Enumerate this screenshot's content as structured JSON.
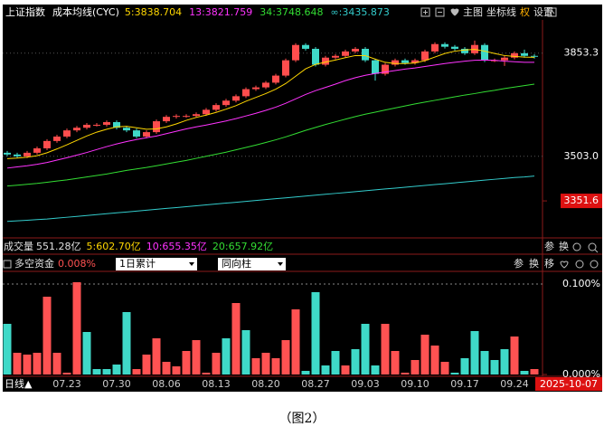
{
  "chart_data": [
    {
      "type": "candlestick",
      "title": "上证指数",
      "subtitle": "成本均线(CYC)",
      "open": [
        3515,
        3509,
        3503,
        3515,
        3530,
        3555,
        3570,
        3591,
        3600,
        3610,
        3610,
        3619,
        3600,
        3591,
        3570,
        3585,
        3622,
        3637,
        3640,
        3640,
        3646,
        3661,
        3677,
        3692,
        3707,
        3731,
        3737,
        3753,
        3777,
        3829,
        3881,
        3868,
        3814,
        3838,
        3844,
        3859,
        3868,
        3829,
        3783,
        3814,
        3829,
        3820,
        3829,
        3859,
        3884,
        3875,
        3868,
        3853,
        3881,
        3829,
        3829,
        3838,
        3853,
        3844
      ],
      "high": [
        3521,
        3515,
        3521,
        3536,
        3561,
        3576,
        3597,
        3606,
        3616,
        3616,
        3625,
        3625,
        3606,
        3597,
        3591,
        3628,
        3643,
        3646,
        3646,
        3652,
        3667,
        3683,
        3698,
        3713,
        3737,
        3743,
        3759,
        3783,
        3835,
        3887,
        3887,
        3874,
        3844,
        3850,
        3865,
        3874,
        3874,
        3835,
        3820,
        3835,
        3835,
        3835,
        3865,
        3890,
        3890,
        3881,
        3874,
        3896,
        3887,
        3835,
        3844,
        3859,
        3865,
        3850
      ],
      "low": [
        3503,
        3497,
        3497,
        3509,
        3524,
        3549,
        3564,
        3585,
        3594,
        3604,
        3604,
        3594,
        3585,
        3564,
        3564,
        3579,
        3616,
        3631,
        3634,
        3634,
        3640,
        3655,
        3671,
        3686,
        3701,
        3725,
        3731,
        3747,
        3771,
        3823,
        3862,
        3808,
        3808,
        3832,
        3838,
        3853,
        3823,
        3760,
        3777,
        3808,
        3814,
        3814,
        3823,
        3853,
        3869,
        3862,
        3847,
        3847,
        3823,
        3823,
        3810,
        3832,
        3838,
        3835
      ],
      "close": [
        3509,
        3503,
        3515,
        3530,
        3555,
        3570,
        3591,
        3600,
        3610,
        3610,
        3619,
        3600,
        3591,
        3570,
        3585,
        3622,
        3637,
        3640,
        3640,
        3646,
        3661,
        3677,
        3692,
        3707,
        3731,
        3737,
        3753,
        3777,
        3829,
        3881,
        3868,
        3814,
        3838,
        3844,
        3859,
        3868,
        3829,
        3783,
        3814,
        3829,
        3820,
        3829,
        3859,
        3884,
        3875,
        3868,
        3853,
        3881,
        3829,
        3829,
        3838,
        3853,
        3844,
        3841
      ],
      "up_color": "#ff4d4d",
      "down_color": "#3fd9c8",
      "series": [
        {
          "name": "5:3838.704",
          "color": "#ffd700",
          "values": [
            3495,
            3497,
            3500,
            3505,
            3515,
            3528,
            3542,
            3557,
            3572,
            3585,
            3595,
            3603,
            3605,
            3600,
            3595,
            3596,
            3603,
            3613,
            3625,
            3635,
            3643,
            3652,
            3663,
            3675,
            3690,
            3703,
            3716,
            3731,
            3750,
            3775,
            3800,
            3815,
            3823,
            3830,
            3838,
            3845,
            3845,
            3833,
            3822,
            3818,
            3818,
            3820,
            3828,
            3840,
            3852,
            3860,
            3864,
            3866,
            3860,
            3852,
            3845,
            3842,
            3840,
            3839
          ]
        },
        {
          "name": "13:3821.759",
          "color": "#ff33ff",
          "values": [
            3463,
            3467,
            3471,
            3476,
            3482,
            3490,
            3498,
            3507,
            3516,
            3526,
            3536,
            3545,
            3553,
            3560,
            3566,
            3572,
            3580,
            3588,
            3596,
            3603,
            3609,
            3616,
            3623,
            3631,
            3640,
            3649,
            3659,
            3670,
            3683,
            3698,
            3713,
            3726,
            3737,
            3748,
            3760,
            3770,
            3778,
            3784,
            3789,
            3794,
            3799,
            3803,
            3808,
            3813,
            3818,
            3822,
            3826,
            3829,
            3830,
            3829,
            3826,
            3824,
            3822,
            3822
          ]
        },
        {
          "name": "34:3748.648",
          "color": "#33dd33",
          "values": [
            3402,
            3405,
            3408,
            3411,
            3415,
            3419,
            3423,
            3428,
            3433,
            3438,
            3443,
            3449,
            3455,
            3460,
            3465,
            3471,
            3477,
            3483,
            3489,
            3496,
            3503,
            3510,
            3517,
            3525,
            3533,
            3541,
            3550,
            3559,
            3569,
            3580,
            3591,
            3601,
            3611,
            3620,
            3629,
            3638,
            3646,
            3653,
            3660,
            3667,
            3674,
            3681,
            3687,
            3693,
            3699,
            3705,
            3711,
            3716,
            3722,
            3727,
            3733,
            3738,
            3743,
            3748
          ]
        },
        {
          "name": "∞:3435.873",
          "color": "#33cccc",
          "values": [
            3282,
            3284,
            3286,
            3288,
            3290,
            3293,
            3296,
            3299,
            3302,
            3305,
            3308,
            3311,
            3314,
            3317,
            3320,
            3323,
            3326,
            3329,
            3332,
            3335,
            3338,
            3341,
            3344,
            3347,
            3350,
            3353,
            3356,
            3359,
            3362,
            3365,
            3368,
            3371,
            3374,
            3377,
            3380,
            3383,
            3386,
            3389,
            3392,
            3395,
            3398,
            3401,
            3404,
            3407,
            3410,
            3413,
            3416,
            3419,
            3422,
            3425,
            3428,
            3431,
            3433,
            3436
          ]
        }
      ],
      "ylim": [
        3229,
        3960
      ],
      "yticks": [
        3853.3,
        {
          "value": 3503,
          "label": "3503.0"
        },
        3351.6
      ],
      "grid": true
    },
    {
      "type": "bar",
      "title": "多空资金",
      "subtitle": "0.008%",
      "options": [
        "1日累计",
        "同向柱"
      ],
      "categories": [
        null,
        null,
        null,
        null,
        null,
        null,
        "07.23",
        null,
        null,
        null,
        null,
        "07.30",
        null,
        null,
        null,
        null,
        "08.06",
        null,
        null,
        null,
        null,
        "08.13",
        null,
        null,
        null,
        null,
        "08.20",
        null,
        null,
        null,
        null,
        "08.27",
        null,
        null,
        null,
        null,
        "09.03",
        null,
        null,
        null,
        null,
        "09.10",
        null,
        null,
        null,
        null,
        "09.17",
        null,
        null,
        null,
        null,
        "09.24",
        null,
        null
      ],
      "values": [
        0.056,
        0.024,
        0.022,
        0.024,
        0.086,
        0.024,
        0.002,
        0.102,
        0.047,
        0.006,
        0.006,
        0.011,
        0.069,
        0.006,
        0.022,
        0.04,
        0.014,
        0.009,
        0.026,
        0.038,
        0.002,
        0.024,
        0.04,
        0.079,
        0.049,
        0.018,
        0.024,
        0.018,
        0.038,
        0.072,
        0.004,
        0.091,
        0.01,
        0.026,
        0.01,
        0.028,
        0.056,
        0.01,
        0.056,
        0.026,
        0.002,
        0.016,
        0.044,
        0.032,
        0.014,
        0.002,
        0.018,
        0.048,
        0.026,
        0.016,
        0.028,
        0.042,
        0.004,
        0.006
      ],
      "colors": [
        "#3fd9c8",
        "#ff5252",
        "#ff5252",
        "#ff5252",
        "#ff5252",
        "#ff5252",
        "#ff5252",
        "#ff5252",
        "#3fd9c8",
        "#3fd9c8",
        "#3fd9c8",
        "#3fd9c8",
        "#3fd9c8",
        "#ff5252",
        "#ff5252",
        "#ff5252",
        "#ff5252",
        "#ff5252",
        "#ff5252",
        "#ff5252",
        "#ff5252",
        "#ff5252",
        "#3fd9c8",
        "#ff5252",
        "#3fd9c8",
        "#ff5252",
        "#ff5252",
        "#ff5252",
        "#ff5252",
        "#ff5252",
        "#3fd9c8",
        "#3fd9c8",
        "#3fd9c8",
        "#3fd9c8",
        "#ff5252",
        "#3fd9c8",
        "#3fd9c8",
        "#3fd9c8",
        "#ff5252",
        "#ff5252",
        "#ff5252",
        "#ff5252",
        "#ff5252",
        "#ff5252",
        "#ff5252",
        "#3fd9c8",
        "#3fd9c8",
        "#3fd9c8",
        "#3fd9c8",
        "#3fd9c8",
        "#3fd9c8",
        "#ff5252",
        "#3fd9c8",
        "#ff5252"
      ],
      "ylim": [
        0,
        0.114
      ],
      "yticks": [
        {
          "value": 0.1,
          "label": "0.100%"
        },
        {
          "value": 0,
          "label": "0.000%"
        }
      ],
      "grid": true
    }
  ],
  "header_buttons": [
    "主图",
    "坐标线",
    "权",
    "设置"
  ],
  "volume_panel": {
    "title": "成交量",
    "value": "551.28亿",
    "averages": [
      {
        "name": "5:602.70亿",
        "color": "#ffd700"
      },
      {
        "name": "10:655.35亿",
        "color": "#ff33ff"
      },
      {
        "name": "20:657.92亿",
        "color": "#33dd33"
      }
    ],
    "buttons": [
      "参",
      "换"
    ]
  },
  "fund_buttons": [
    "参",
    "换",
    "移"
  ],
  "period": "日线▲",
  "cursor_date": "2025-10-07",
  "caption": "（图2）"
}
